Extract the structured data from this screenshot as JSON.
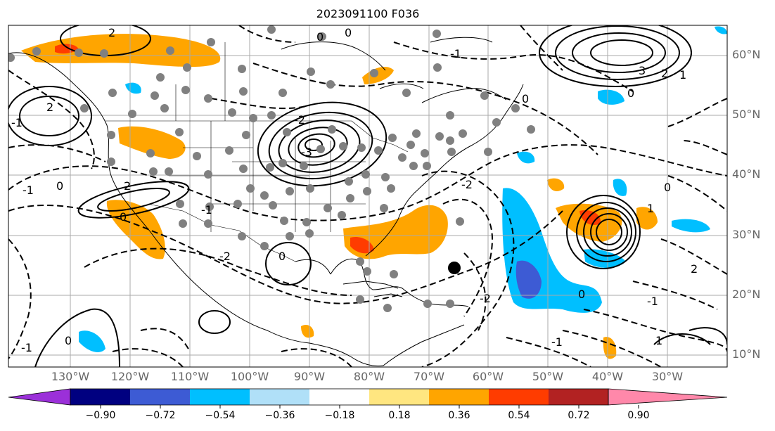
{
  "title": "2023091100 F036",
  "lat_labels": [
    "60°N",
    "50°N",
    "40°N",
    "30°N",
    "20°N",
    "10°N"
  ],
  "lon_labels": [
    "130°W",
    "120°W",
    "110°W",
    "100°W",
    "90°W",
    "80°W",
    "70°W",
    "60°W",
    "50°W",
    "40°W",
    "30°W"
  ],
  "colorbar": {
    "colors": [
      "#9b30d9",
      "#000080",
      "#3d5bd4",
      "#00bfff",
      "#b0e0f8",
      "#ffffff",
      "#ffe680",
      "#ffa500",
      "#ff3c00",
      "#b22222",
      "#ff88aa"
    ],
    "tick_labels": [
      "−0.90",
      "−0.72",
      "−0.54",
      "−0.36",
      "−0.18",
      "0.18",
      "0.36",
      "0.54",
      "0.72",
      "0.90"
    ]
  },
  "contour_labels": [
    "2",
    "0",
    "0",
    "-1",
    "3",
    "2",
    "1",
    "0",
    "0",
    "2",
    "-1",
    "-1",
    "0",
    "2",
    "0",
    "-1",
    "0",
    "-3",
    "-2",
    "-2",
    "-2",
    "0",
    "1",
    "2",
    "-2",
    "-1",
    "0",
    "-1",
    "1",
    "0",
    "-1"
  ],
  "markers": {
    "gray_color": "#808080",
    "highlight_color": "#000000"
  }
}
